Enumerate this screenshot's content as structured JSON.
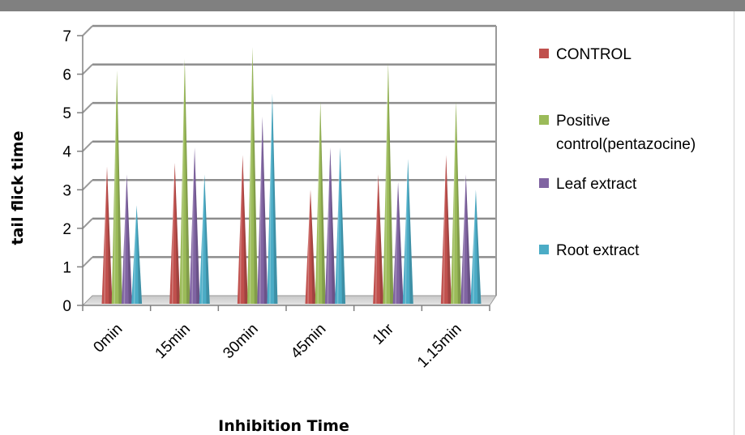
{
  "chart_data": {
    "type": "bar",
    "bar_shape": "cone",
    "categories": [
      "0min",
      "15min",
      "30min",
      "45min",
      "1hr",
      "1.15min"
    ],
    "series": [
      {
        "name": "CONTROL",
        "color": "#c0504d",
        "values": [
          3.6,
          3.7,
          3.9,
          3.0,
          3.4,
          3.9
        ]
      },
      {
        "name": "Positive control(pentazocine)",
        "color": "#9bbb59",
        "values": [
          6.1,
          6.4,
          6.7,
          5.3,
          6.3,
          5.3
        ]
      },
      {
        "name": "Leaf extract",
        "color": "#8064a2",
        "values": [
          3.4,
          4.1,
          4.9,
          4.1,
          3.2,
          3.4
        ]
      },
      {
        "name": "Root extract",
        "color": "#4bacc6",
        "values": [
          2.6,
          3.4,
          5.5,
          4.1,
          3.8,
          3.0
        ]
      }
    ],
    "xlabel": "Inhibition Time",
    "ylabel": "tail flick time",
    "ylim": [
      0,
      7
    ],
    "yticks": [
      "0",
      "1",
      "2",
      "3",
      "4",
      "5",
      "6",
      "7"
    ],
    "grid": true,
    "legend_position": "right"
  }
}
